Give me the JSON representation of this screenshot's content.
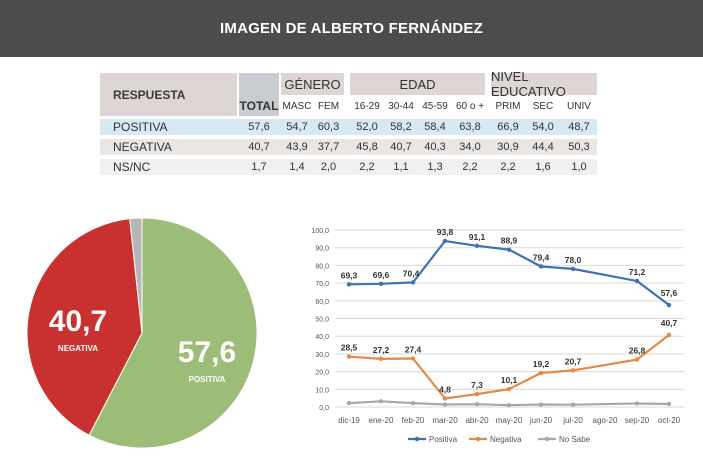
{
  "header": {
    "title": "IMAGEN DE ALBERTO FERNÁNDEZ"
  },
  "table": {
    "respuesta_label": "RESPUESTA",
    "total_label": "TOTAL",
    "groups": [
      "GÉNERO",
      "EDAD",
      "NIVEL EDUCATIVO"
    ],
    "subheaders": [
      "MASC",
      "FEM",
      "16-29",
      "30-44",
      "45-59",
      "60 o +",
      "PRIM",
      "SEC",
      "UNIV"
    ],
    "rows": [
      {
        "label": "POSITIVA",
        "values": [
          "57,6",
          "54,7",
          "60,3",
          "52,0",
          "58,2",
          "58,4",
          "63,8",
          "66,9",
          "54,0",
          "48,7"
        ]
      },
      {
        "label": "NEGATIVA",
        "values": [
          "40,7",
          "43,9",
          "37,7",
          "45,8",
          "40,7",
          "40,3",
          "34,0",
          "30,9",
          "44,4",
          "50,3"
        ]
      },
      {
        "label": "NS/NC",
        "values": [
          "1,7",
          "1,4",
          "2,0",
          "2,2",
          "1,1",
          "1,3",
          "2,2",
          "2,2",
          "1,6",
          "1,0"
        ]
      }
    ],
    "colors": {
      "header_bg": "#ddd6d4",
      "total_bg": "#c9ccd0",
      "positiva_bg": "#d6e9f4",
      "negativa_bg": "#e9e6e4",
      "nsnc_bg": "#f0f0f0"
    }
  },
  "chart_data": [
    {
      "type": "pie",
      "labels": [
        "POSITIVA",
        "NEGATIVA",
        "NS/NC"
      ],
      "values": [
        57.6,
        40.7,
        1.7
      ],
      "display_values": [
        "57,6",
        "40,7",
        ""
      ],
      "colors": [
        "#9cbd77",
        "#c8312f",
        "#b7b7b7"
      ]
    },
    {
      "type": "line",
      "x": [
        "dic-19",
        "ene-20",
        "feb-20",
        "mar-20",
        "abr-20",
        "may-20",
        "jun-20",
        "jul-20",
        "ago-20",
        "sep-20",
        "oct-20"
      ],
      "series": [
        {
          "name": "Positiva",
          "color": "#3d72b4",
          "values": [
            69.3,
            69.6,
            70.4,
            93.8,
            91.1,
            88.9,
            79.4,
            78.0,
            null,
            71.2,
            57.6
          ],
          "labels": [
            "69,3",
            "69,6",
            "70,4",
            "93,8",
            "91,1",
            "88,9",
            "79,4",
            "78,0",
            null,
            "71,2",
            "57,6"
          ]
        },
        {
          "name": "Negativa",
          "color": "#e58a45",
          "values": [
            28.5,
            27.2,
            27.4,
            4.8,
            7.3,
            10.1,
            19.2,
            20.7,
            null,
            26.8,
            40.7
          ],
          "labels": [
            "28,5",
            "27,2",
            "27,4",
            "4,8",
            "7,3",
            "10,1",
            "19,2",
            "20,7",
            null,
            "26,8",
            "40,7"
          ]
        },
        {
          "name": "No Sabe",
          "color": "#a8a8a8",
          "values": [
            2.2,
            3.2,
            2.2,
            1.4,
            1.6,
            1.0,
            1.4,
            1.3,
            null,
            2.0,
            1.7
          ],
          "labels": [
            null,
            null,
            null,
            null,
            null,
            null,
            null,
            null,
            null,
            null,
            null
          ]
        }
      ],
      "y_ticks": [
        "0,0",
        "10,0",
        "20,0",
        "30,0",
        "40,0",
        "50,0",
        "60,0",
        "70,0",
        "80,0",
        "90,0",
        "100,0"
      ],
      "ylim": [
        0,
        100
      ],
      "grid": true,
      "legend": "bottom"
    }
  ]
}
